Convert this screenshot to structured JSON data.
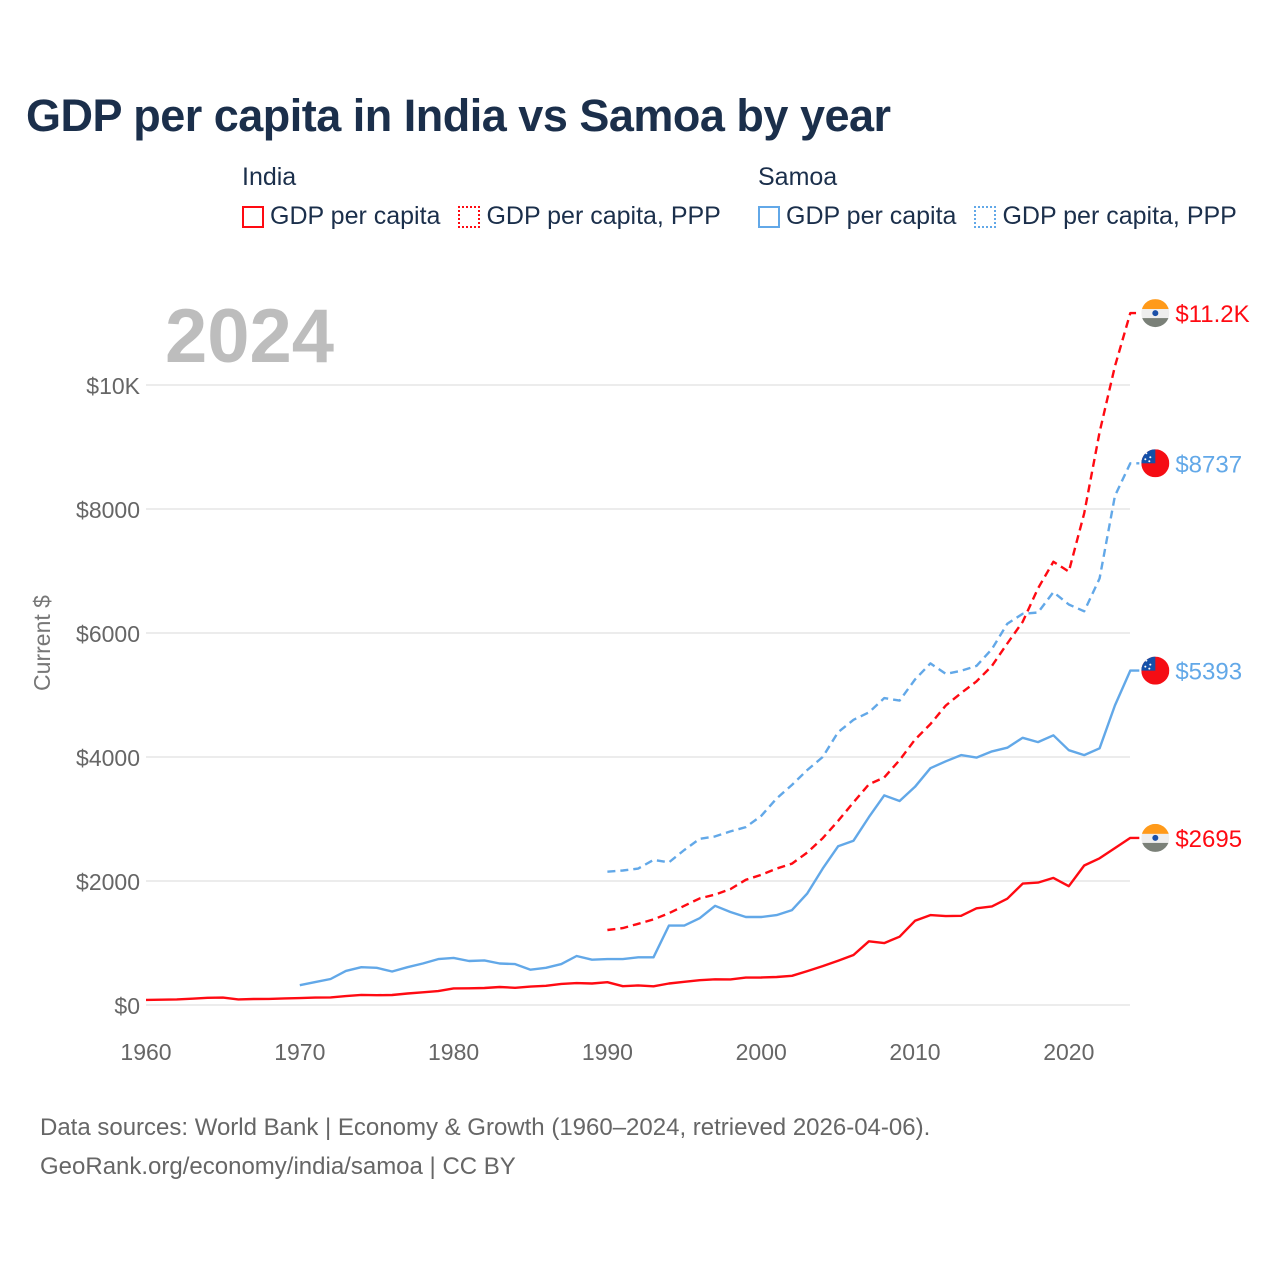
{
  "colors": {
    "india": "#ff0a12",
    "samoa": "#62a8e8",
    "title": "#1b2f4b",
    "grid": "#e6e6e6"
  },
  "chart_data": {
    "type": "line",
    "title": "GDP per capita in India vs Samoa by year",
    "ylabel": "Current $",
    "xlabel": "",
    "year_label": "2024",
    "xlim": [
      1960,
      2024
    ],
    "ylim": [
      0,
      11500
    ],
    "grid": true,
    "x_ticks": [
      1960,
      1970,
      1980,
      1990,
      2000,
      2010,
      2020
    ],
    "y_ticks": [
      {
        "value": 0,
        "label": "$0"
      },
      {
        "value": 2000,
        "label": "$2000"
      },
      {
        "value": 4000,
        "label": "$4000"
      },
      {
        "value": 6000,
        "label": "$6000"
      },
      {
        "value": 8000,
        "label": "$8000"
      },
      {
        "value": 10000,
        "label": "$10K"
      }
    ],
    "legend": {
      "placement": "top",
      "groups": [
        {
          "country": "India",
          "items": [
            "GDP per capita",
            "GDP per capita, PPP"
          ]
        },
        {
          "country": "Samoa",
          "items": [
            "GDP per capita",
            "GDP per capita, PPP"
          ]
        }
      ]
    },
    "series": [
      {
        "name": "India GDP per capita",
        "country": "india",
        "style": "solid",
        "start": 1960,
        "end_label": "$2695",
        "values": [
          82,
          85,
          90,
          101,
          116,
          119,
          90,
          96,
          99,
          107,
          112,
          119,
          123,
          144,
          163,
          158,
          161,
          186,
          205,
          224,
          267,
          270,
          274,
          291,
          277,
          296,
          310,
          340,
          354,
          346,
          368,
          303,
          316,
          301,
          346,
          374,
          400,
          415,
          413,
          442,
          443,
          452,
          471,
          547,
          628,
          715,
          807,
          1028,
          999,
          1102,
          1358,
          1450,
          1434,
          1438,
          1560,
          1590,
          1714,
          1958,
          1974,
          2050,
          1916,
          2250,
          2366,
          2530,
          2695
        ]
      },
      {
        "name": "India GDP per capita, PPP",
        "country": "india",
        "style": "dashed",
        "start": 1990,
        "end_label": "$11.2K",
        "values": [
          1210,
          1240,
          1310,
          1380,
          1480,
          1600,
          1720,
          1780,
          1870,
          2020,
          2100,
          2200,
          2280,
          2460,
          2690,
          2970,
          3270,
          3560,
          3670,
          3950,
          4280,
          4530,
          4830,
          5030,
          5220,
          5470,
          5830,
          6180,
          6720,
          7150,
          6990,
          7930,
          9240,
          10300,
          11160
        ]
      },
      {
        "name": "Samoa GDP per capita",
        "country": "samoa",
        "style": "solid",
        "start": 1970,
        "end_label": "$5393",
        "values": [
          320,
          370,
          420,
          550,
          610,
          600,
          540,
          610,
          670,
          740,
          760,
          710,
          720,
          670,
          660,
          570,
          600,
          660,
          790,
          730,
          740,
          740,
          770,
          770,
          1280,
          1280,
          1400,
          1600,
          1500,
          1420,
          1420,
          1450,
          1530,
          1800,
          2200,
          2560,
          2650,
          3030,
          3380,
          3290,
          3520,
          3820,
          3930,
          4030,
          3990,
          4090,
          4150,
          4310,
          4240,
          4350,
          4110,
          4030,
          4140,
          4830,
          5393
        ]
      },
      {
        "name": "Samoa GDP per capita, PPP",
        "country": "samoa",
        "style": "dashed",
        "start": 1990,
        "end_label": "$8737",
        "values": [
          2150,
          2170,
          2200,
          2340,
          2300,
          2500,
          2680,
          2720,
          2800,
          2870,
          3050,
          3330,
          3550,
          3790,
          4000,
          4400,
          4600,
          4720,
          4950,
          4910,
          5250,
          5510,
          5340,
          5390,
          5470,
          5740,
          6150,
          6310,
          6330,
          6660,
          6460,
          6350,
          6880,
          8210,
          8737
        ]
      }
    ]
  },
  "footer": {
    "line1": "Data sources: World Bank | Economy & Growth (1960–2024, retrieved 2026-04-06).",
    "line2": "GeoRank.org/economy/india/samoa | CC BY"
  }
}
